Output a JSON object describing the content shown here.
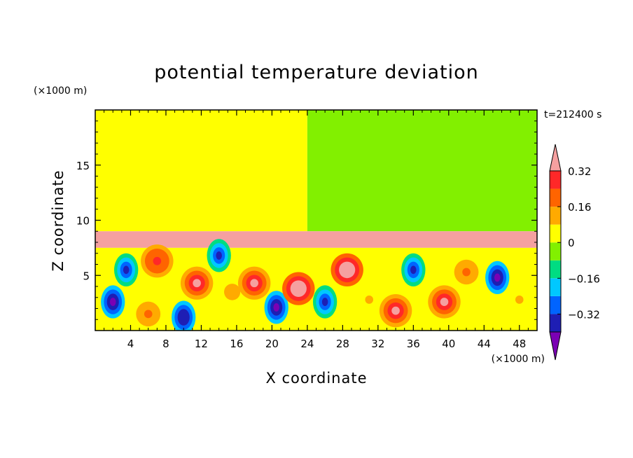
{
  "chart_data": {
    "type": "heatmap",
    "title": "potential temperature deviation",
    "xlabel": "X coordinate",
    "ylabel": "Z coordinate",
    "x_unit": "(×1000 m)",
    "y_unit": "(×1000 m)",
    "time_label": "t=212400 s",
    "xlim": [
      0,
      50
    ],
    "ylim": [
      0,
      20
    ],
    "x_ticks": [
      4,
      8,
      12,
      16,
      20,
      24,
      28,
      32,
      36,
      40,
      44,
      48
    ],
    "y_ticks": [
      5,
      10,
      15
    ],
    "colorbar": {
      "levels": [
        -0.4,
        -0.32,
        -0.24,
        -0.16,
        -0.08,
        0,
        0.08,
        0.16,
        0.24,
        0.32,
        0.4
      ],
      "tick_values": [
        -0.32,
        -0.16,
        0,
        0.16,
        0.32
      ],
      "tick_labels": [
        "−0.32",
        "−0.16",
        "0",
        "0.16",
        "0.32"
      ],
      "colors": [
        "#7b00b4",
        "#1e1eb4",
        "#0064ff",
        "#00c8ff",
        "#00dc82",
        "#82f000",
        "#ffff00",
        "#ffaa00",
        "#ff6400",
        "#ff2828",
        "#f5a0a0"
      ],
      "extend": "both"
    },
    "fields": [
      {
        "name": "upper-left region",
        "x": [
          0,
          24
        ],
        "z": [
          9,
          20
        ],
        "value": 0.04
      },
      {
        "name": "upper-right region",
        "x": [
          24,
          50
        ],
        "z": [
          9,
          20
        ],
        "value": -0.04
      },
      {
        "name": "inversion layer",
        "x": [
          0,
          50
        ],
        "z": [
          7.5,
          9
        ],
        "value": 0.45
      },
      {
        "name": "lower eddy layer",
        "x": [
          0,
          50
        ],
        "z": [
          0,
          7.5
        ],
        "value": 0.0
      }
    ],
    "features": [
      {
        "x": 2,
        "z": 2.6,
        "value": -0.45
      },
      {
        "x": 3.5,
        "z": 5.5,
        "value": -0.36
      },
      {
        "x": 6,
        "z": 1.5,
        "value": 0.16
      },
      {
        "x": 7,
        "z": 6.3,
        "value": 0.28
      },
      {
        "x": 10,
        "z": 1.2,
        "value": -0.4
      },
      {
        "x": 11.5,
        "z": 4.3,
        "value": 0.36
      },
      {
        "x": 14,
        "z": 6.8,
        "value": -0.36
      },
      {
        "x": 15.5,
        "z": 3.5,
        "value": 0.12
      },
      {
        "x": 18,
        "z": 4.3,
        "value": 0.32
      },
      {
        "x": 20.5,
        "z": 2.1,
        "value": -0.45
      },
      {
        "x": 23,
        "z": 3.8,
        "value": 0.45
      },
      {
        "x": 26,
        "z": 2.6,
        "value": -0.36
      },
      {
        "x": 28.5,
        "z": 5.5,
        "value": 0.45
      },
      {
        "x": 31,
        "z": 2.8,
        "value": 0.08
      },
      {
        "x": 34,
        "z": 1.8,
        "value": 0.32
      },
      {
        "x": 36,
        "z": 5.5,
        "value": -0.36
      },
      {
        "x": 39.5,
        "z": 2.6,
        "value": 0.32
      },
      {
        "x": 42,
        "z": 5.3,
        "value": 0.16
      },
      {
        "x": 45.5,
        "z": 4.8,
        "value": -0.45
      },
      {
        "x": 48,
        "z": 2.8,
        "value": 0.08
      }
    ],
    "grid": false,
    "legend": "colorbar-right"
  }
}
